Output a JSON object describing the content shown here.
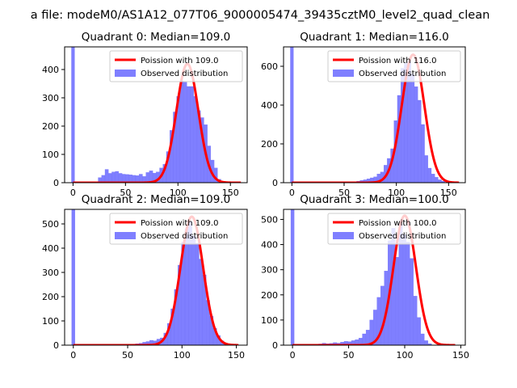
{
  "figure": {
    "suptitle": "a file: modeM0/AS1A12_077T06_9000005474_39435cztM0_level2_quad_clean"
  },
  "colors": {
    "observed": "#7f7fff",
    "observed_edge": "#6f6ff5",
    "poisson": "#ff0000",
    "axis": "#000000",
    "legend_border": "#cccccc"
  },
  "chart_data": [
    {
      "type": "bar",
      "title": "Quadrant 0: Median=109.0",
      "xlim": [
        -8,
        166
      ],
      "ylim": [
        0,
        480
      ],
      "xticks": [
        0,
        50,
        100,
        150
      ],
      "yticks": [
        0,
        100,
        200,
        300,
        400
      ],
      "legend_position": "upper right",
      "legend": [
        "Poission with 109.0",
        "Observed distribution"
      ],
      "mean": 109.0,
      "peak": 420,
      "line_start": 0,
      "line_end": 160,
      "spike": {
        "x": 0,
        "value": 480
      },
      "bin_start": 24,
      "bin_width": 3.25,
      "values": [
        18,
        26,
        47,
        33,
        38,
        40,
        33,
        30,
        29,
        28,
        26,
        25,
        30,
        22,
        36,
        42,
        34,
        38,
        52,
        65,
        110,
        185,
        250,
        305,
        360,
        355,
        340,
        340,
        305,
        255,
        230,
        205,
        130,
        80,
        52,
        12,
        5
      ]
    },
    {
      "type": "bar",
      "title": "Quadrant 1: Median=116.0",
      "xlim": [
        -8,
        166
      ],
      "ylim": [
        0,
        700
      ],
      "xticks": [
        0,
        50,
        100,
        150
      ],
      "yticks": [
        0,
        200,
        400,
        600
      ],
      "legend_position": "upper right",
      "legend": [
        "Poission with 116.0",
        "Observed distribution"
      ],
      "mean": 116.0,
      "peak": 660,
      "line_start": 0,
      "line_end": 160,
      "spike": {
        "x": 0,
        "value": 700
      },
      "bin_start": 62,
      "bin_width": 3.25,
      "values": [
        8,
        12,
        15,
        20,
        25,
        30,
        45,
        55,
        90,
        125,
        175,
        320,
        450,
        590,
        615,
        625,
        560,
        495,
        425,
        300,
        140,
        75,
        45,
        28,
        15,
        8
      ]
    },
    {
      "type": "bar",
      "title": "Quadrant 2: Median=109.0",
      "xlim": [
        -8,
        160
      ],
      "ylim": [
        0,
        560
      ],
      "xticks": [
        0,
        50,
        100,
        150
      ],
      "yticks": [
        0,
        100,
        200,
        300,
        400,
        500
      ],
      "legend_position": "upper right",
      "legend": [
        "Poission with 109.0",
        "Observed distribution"
      ],
      "mean": 109.0,
      "peak": 530,
      "line_start": 0,
      "line_end": 152,
      "spike": {
        "x": 0,
        "value": 560
      },
      "bin_start": 54,
      "bin_width": 3.25,
      "values": [
        4,
        6,
        8,
        12,
        15,
        20,
        18,
        25,
        30,
        50,
        90,
        150,
        230,
        330,
        425,
        480,
        510,
        450,
        420,
        355,
        290,
        185,
        120,
        70,
        40,
        18,
        8
      ]
    },
    {
      "type": "bar",
      "title": "Quadrant 3: Median=100.0",
      "xlim": [
        -8,
        154
      ],
      "ylim": [
        0,
        540
      ],
      "xticks": [
        0,
        50,
        100,
        150
      ],
      "yticks": [
        0,
        100,
        200,
        300,
        400,
        500
      ],
      "legend_position": "upper right",
      "legend": [
        "Poission with 100.0",
        "Observed distribution"
      ],
      "mean": 100.0,
      "peak": 515,
      "line_start": 0,
      "line_end": 145,
      "spike": {
        "x": 0,
        "value": 540
      },
      "bin_start": 20,
      "bin_width": 3.25,
      "values": [
        4,
        5,
        8,
        6,
        7,
        10,
        8,
        12,
        15,
        14,
        18,
        22,
        28,
        45,
        60,
        100,
        140,
        190,
        235,
        295,
        415,
        465,
        350,
        480,
        440,
        410,
        345,
        195,
        110,
        45,
        18,
        6
      ]
    }
  ]
}
